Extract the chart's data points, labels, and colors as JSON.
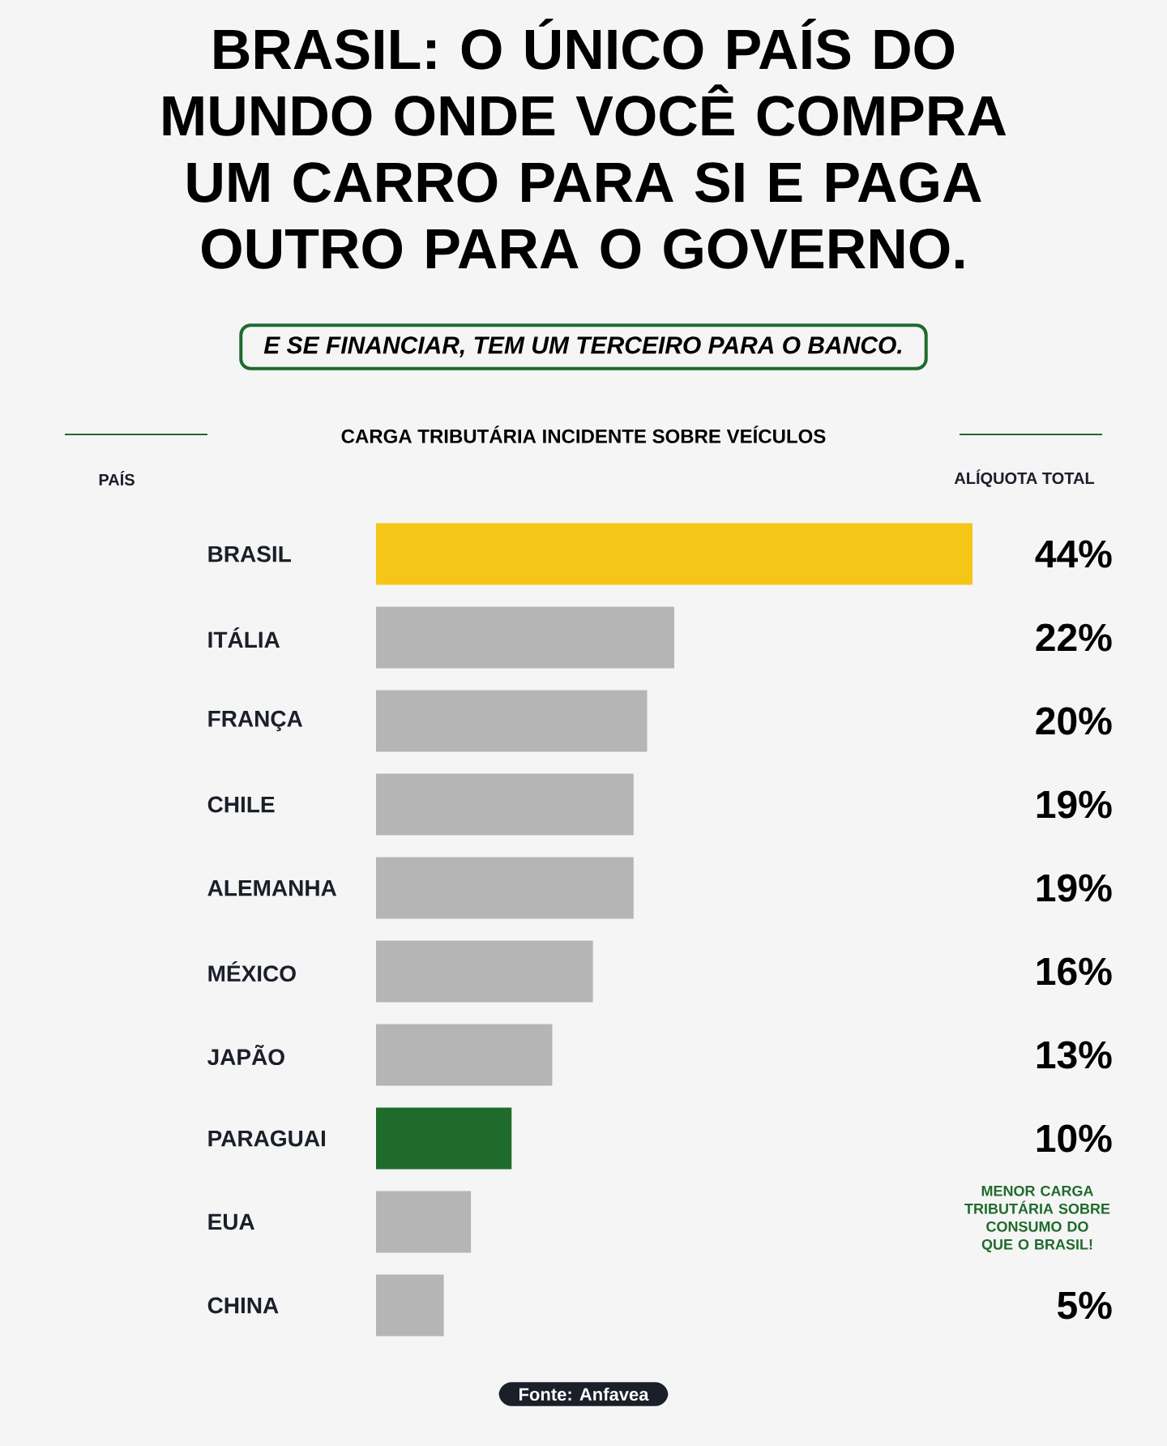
{
  "chart_data": {
    "type": "bar",
    "orientation": "horizontal",
    "title": "BRASIL: O ÚNICO PAÍS DO MUNDO ONDE VOCÊ COMPRA UM CARRO PARA SI E PAGA OUTRO PARA O GOVERNO.",
    "subtitle": "E SE FINANCIAR, TEM UM TERCEIRO PARA O BANCO.",
    "categories": [
      "BRASIL",
      "ITÁLIA",
      "FRANÇA",
      "CHILE",
      "ALEMANHA",
      "MÉXICO",
      "JAPÃO",
      "PARAGUAI",
      "EUA",
      "CHINA"
    ],
    "values": [
      44,
      22,
      20,
      19,
      19,
      16,
      13,
      10,
      7,
      5
    ],
    "value_labels": [
      "44%",
      "22%",
      "20%",
      "19%",
      "19%",
      "16%",
      "13%",
      "10%",
      null,
      "5%"
    ],
    "colors": [
      "#f5c518",
      "#b5b5b5",
      "#b5b5b5",
      "#b5b5b5",
      "#b5b5b5",
      "#b5b5b5",
      "#b5b5b5",
      "#1f6b2c",
      "#b5b5b5",
      "#b5b5b5"
    ],
    "annotations": [
      "CARGA TRIBUTÁRIA INCIDENTE SOBRE VEÍCULOS",
      "MENOR CARGA TRIBUTÁRIA SOBRE CONSUMO DO QUE O BRASIL!",
      "Fonte: Anfavea",
      "PAÍS",
      "ALÍQUOTA TOTAL"
    ]
  }
}
